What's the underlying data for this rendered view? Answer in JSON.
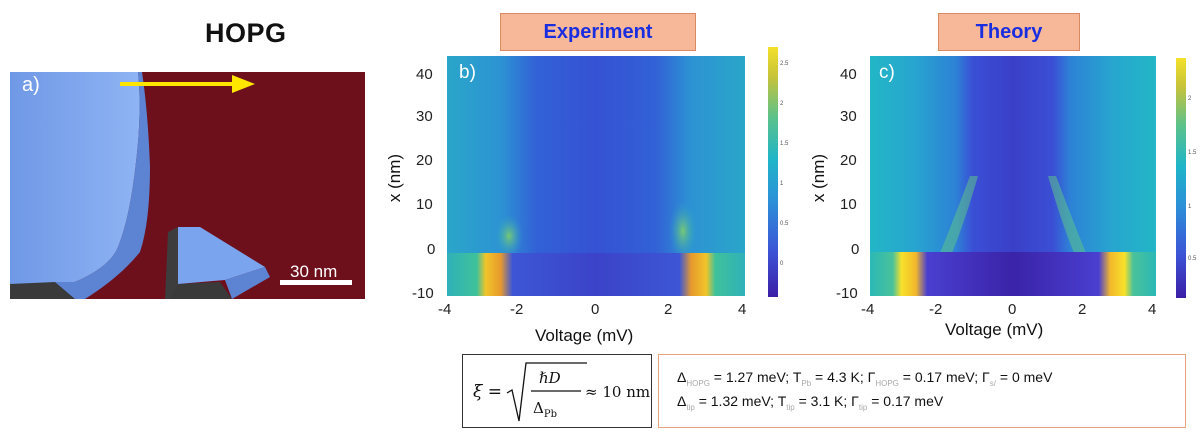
{
  "panel_a": {
    "title": "HOPG",
    "label": "a)",
    "scalebar": "30 nm"
  },
  "panel_b": {
    "header": "Experiment",
    "label": "b)"
  },
  "panel_c": {
    "header": "Theory",
    "label": "c)"
  },
  "colors": {
    "substrate": "#6e0f1c",
    "island": "#7ba4ee",
    "arrow": "#ffe600",
    "header_bg": "#f6b899",
    "header_text": "#1a2ee0"
  },
  "formula": {
    "lhs": "ξ =",
    "numerator": "ℏD",
    "denominator": "Δ",
    "den_sub": "Pb",
    "rhs": "≈ 10 nm"
  },
  "params": {
    "line1": [
      {
        "sym": "Δ",
        "sub": "HOPG",
        "val": " = 1.27 meV; "
      },
      {
        "sym": "T",
        "sub": "Pb",
        "val": " = 4.3 K; "
      },
      {
        "sym": "Γ",
        "sub": "HOPG",
        "val": " = 0.17 meV; "
      },
      {
        "sym": "Γ",
        "sub": "s/",
        "val": " = 0 meV"
      }
    ],
    "line2": [
      {
        "sym": "Δ",
        "sub": "tip",
        "val": " = 1.32 meV; "
      },
      {
        "sym": "T",
        "sub": "tip",
        "val": " = 3.1 K; "
      },
      {
        "sym": "Γ",
        "sub": "tip",
        "val": " = 0.17 meV"
      }
    ]
  },
  "chart_data": [
    {
      "type": "heatmap",
      "panel": "b)",
      "title": "Experiment",
      "xlabel": "Voltage (mV)",
      "ylabel": "x (nm)",
      "xlim": [
        -4,
        4
      ],
      "ylim": [
        -10,
        45
      ],
      "xticks": [
        "-4",
        "-2",
        "0",
        "2",
        "4"
      ],
      "yticks": [
        "-10",
        "0",
        "10",
        "20",
        "30",
        "40"
      ],
      "colorbar_ticks": [
        "0",
        "0.5",
        "1",
        "1.5",
        "2",
        "2.5"
      ],
      "features": {
        "coherence_peaks_mV": [
          -2.6,
          2.6
        ],
        "gap_region_nm": [
          -10,
          0
        ]
      }
    },
    {
      "type": "heatmap",
      "panel": "c)",
      "title": "Theory",
      "xlabel": "Voltage (mV)",
      "ylabel": "x (nm)",
      "xlim": [
        -4,
        4
      ],
      "ylim": [
        -10,
        45
      ],
      "xticks": [
        "-4",
        "-2",
        "0",
        "2",
        "4"
      ],
      "yticks": [
        "-10",
        "0",
        "10",
        "20",
        "30",
        "40"
      ],
      "colorbar_ticks": [
        "0.5",
        "1",
        "1.5",
        "2"
      ],
      "features": {
        "coherence_peaks_mV": [
          -2.6,
          2.6
        ],
        "gap_region_nm": [
          -10,
          0
        ]
      }
    }
  ]
}
